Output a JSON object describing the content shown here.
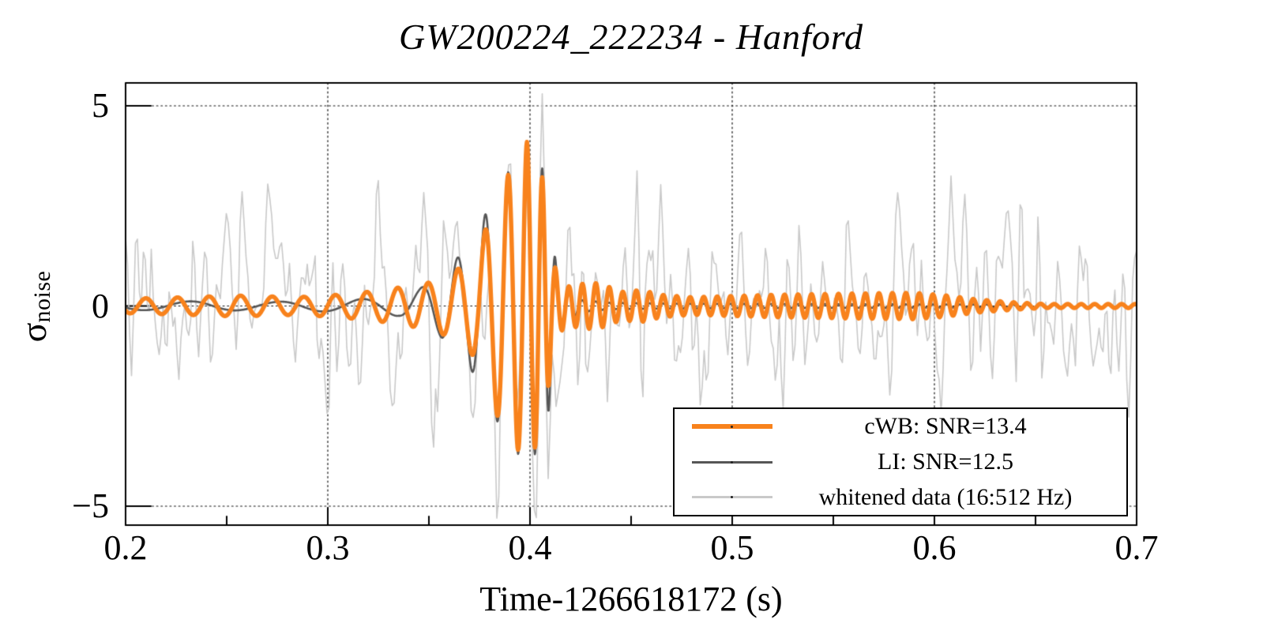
{
  "chart_data": {
    "type": "line",
    "title": "GW200224_222234 - Hanford",
    "xlabel": "Time-1266618172 (s)",
    "ylabel_main": "σ",
    "ylabel_sub": "noise",
    "xlim": [
      0.2,
      0.7
    ],
    "ylim": [
      -5.47,
      5.57
    ],
    "grid": "dotted",
    "legend_position": "bottom-right",
    "x_axis": {
      "major_ticks": [
        0.2,
        0.3,
        0.4,
        0.5,
        0.6,
        0.7
      ],
      "major_tick_labels": [
        "0.2",
        "0.3",
        "0.4",
        "0.5",
        "0.6",
        "0.7"
      ],
      "minor_ticks": [
        0.25,
        0.35,
        0.45,
        0.55,
        0.65
      ],
      "gridlines": [
        0.3,
        0.4,
        0.5,
        0.6
      ]
    },
    "y_axis": {
      "major_ticks": [
        5,
        0,
        -5
      ],
      "major_tick_labels": [
        "5",
        "0",
        "−5"
      ],
      "gridlines": [
        5,
        0,
        -5
      ]
    },
    "series": [
      {
        "name": "cWB: SNR=13.4",
        "color": "#f8821c",
        "line_width": 5.5,
        "kind": "chirp",
        "phase_peak_t": 0.3985,
        "envelope_t_A": [
          [
            0.2,
            0.18
          ],
          [
            0.23,
            0.22
          ],
          [
            0.255,
            0.26
          ],
          [
            0.285,
            0.22
          ],
          [
            0.305,
            0.28
          ],
          [
            0.325,
            0.38
          ],
          [
            0.34,
            0.5
          ],
          [
            0.352,
            0.6
          ],
          [
            0.36,
            0.78
          ],
          [
            0.368,
            1.05
          ],
          [
            0.374,
            1.35
          ],
          [
            0.38,
            2.2
          ],
          [
            0.386,
            3.05
          ],
          [
            0.391,
            3.4
          ],
          [
            0.395,
            3.65
          ],
          [
            0.3985,
            4.1
          ],
          [
            0.4015,
            3.6
          ],
          [
            0.4045,
            3.4
          ],
          [
            0.407,
            3.1
          ],
          [
            0.409,
            2.1
          ],
          [
            0.411,
            1.2
          ],
          [
            0.414,
            0.72
          ],
          [
            0.418,
            0.48
          ],
          [
            0.425,
            0.55
          ],
          [
            0.432,
            0.58
          ],
          [
            0.438,
            0.5
          ],
          [
            0.445,
            0.35
          ],
          [
            0.455,
            0.4
          ],
          [
            0.465,
            0.28
          ],
          [
            0.48,
            0.22
          ],
          [
            0.5,
            0.25
          ],
          [
            0.52,
            0.28
          ],
          [
            0.545,
            0.3
          ],
          [
            0.57,
            0.32
          ],
          [
            0.59,
            0.33
          ],
          [
            0.605,
            0.27
          ],
          [
            0.62,
            0.17
          ],
          [
            0.64,
            0.09
          ],
          [
            0.655,
            0.05
          ],
          [
            0.675,
            0.05
          ],
          [
            0.7,
            0.05
          ]
        ],
        "frequency_t_hz": [
          [
            0.2,
            64
          ],
          [
            0.3,
            64
          ],
          [
            0.34,
            66
          ],
          [
            0.36,
            68
          ],
          [
            0.372,
            74
          ],
          [
            0.384,
            88
          ],
          [
            0.392,
            103
          ],
          [
            0.398,
            118
          ],
          [
            0.403,
            135
          ],
          [
            0.408,
            155
          ],
          [
            0.415,
            150
          ],
          [
            0.45,
            150
          ],
          [
            0.7,
            150
          ]
        ],
        "merger_extrema_t_v": [
          [
            0.373,
            1.3
          ],
          [
            0.381,
            -2.8
          ],
          [
            0.388,
            3.2
          ],
          [
            0.394,
            -3.6
          ],
          [
            0.3985,
            4.1
          ],
          [
            0.4025,
            -3.6
          ],
          [
            0.406,
            3.3
          ],
          [
            0.409,
            -2.1
          ]
        ]
      },
      {
        "name": "LI: SNR=12.5",
        "color": "#565656",
        "line_width": 2.6,
        "kind": "chirp",
        "phase_peak_t": 0.3985,
        "envelope_t_A": [
          [
            0.2,
            0.1
          ],
          [
            0.24,
            0.12
          ],
          [
            0.27,
            0.1
          ],
          [
            0.3,
            0.14
          ],
          [
            0.32,
            0.18
          ],
          [
            0.335,
            0.25
          ],
          [
            0.345,
            0.42
          ],
          [
            0.355,
            0.72
          ],
          [
            0.362,
            1.1
          ],
          [
            0.37,
            1.5
          ],
          [
            0.378,
            2.3
          ],
          [
            0.386,
            3.1
          ],
          [
            0.392,
            3.55
          ],
          [
            0.3985,
            4.0
          ],
          [
            0.4045,
            3.55
          ],
          [
            0.408,
            3.3
          ],
          [
            0.41,
            2.2
          ],
          [
            0.413,
            1.0
          ],
          [
            0.417,
            0.4
          ],
          [
            0.425,
            0.15
          ],
          [
            0.44,
            0.08
          ],
          [
            0.47,
            0.06
          ],
          [
            0.52,
            0.05
          ],
          [
            0.6,
            0.04
          ],
          [
            0.7,
            0.03
          ]
        ],
        "frequency_t_hz": [
          [
            0.2,
            21
          ],
          [
            0.3,
            24
          ],
          [
            0.33,
            30
          ],
          [
            0.345,
            45
          ],
          [
            0.36,
            62
          ],
          [
            0.372,
            74
          ],
          [
            0.384,
            88
          ],
          [
            0.392,
            103
          ],
          [
            0.398,
            118
          ],
          [
            0.403,
            135
          ],
          [
            0.408,
            155
          ],
          [
            0.42,
            150
          ],
          [
            0.7,
            150
          ]
        ]
      },
      {
        "name": "whitened data (16:512 Hz)",
        "color": "#c9c9c9",
        "line_width": 1.6,
        "kind": "noise_plus_signal",
        "noise_std": 1.25,
        "band_hz": [
          16,
          512
        ],
        "sample_rate_hz": 1024,
        "signal_source": "LI: SNR=12.5"
      }
    ],
    "legend": {
      "entries": [
        {
          "label": "cWB: SNR=13.4",
          "color": "#f8821c",
          "sample_height": 6
        },
        {
          "label": "LI: SNR=12.5",
          "color": "#565656",
          "sample_height": 3
        },
        {
          "label": "whitened data (16:512 Hz)",
          "color": "#c9c9c9",
          "sample_height": 3
        }
      ]
    },
    "frame_color": "#000000",
    "grid_color": "#111111"
  }
}
